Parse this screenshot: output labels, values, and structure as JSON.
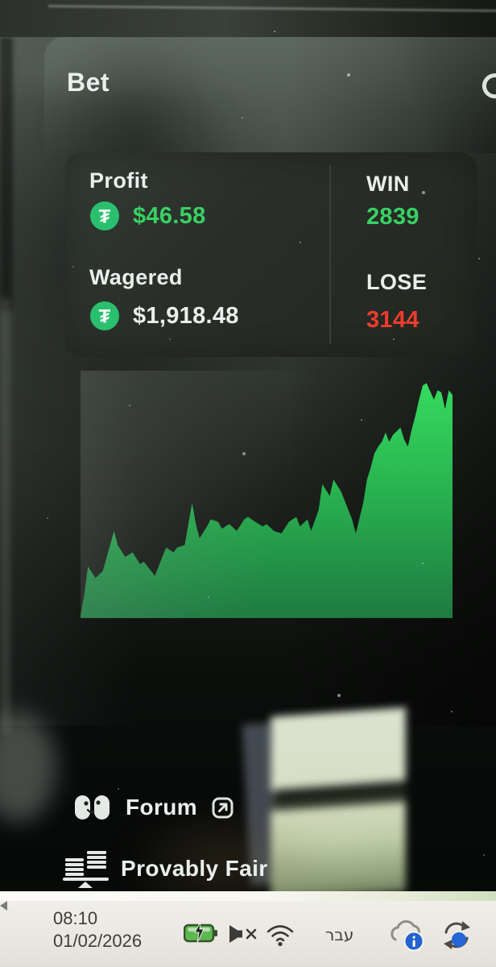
{
  "header": {
    "title": "Bet"
  },
  "stats": {
    "profit_label": "Profit",
    "profit_value": "$46.58",
    "wagered_label": "Wagered",
    "wagered_value": "$1,918.48",
    "win_label": "WIN",
    "win_value": "2839",
    "lose_label": "LOSE",
    "lose_value": "3144"
  },
  "links": {
    "forum_label": "Forum",
    "provably_fair_label": "Provably Fair"
  },
  "taskbar": {
    "time": "08:10",
    "date": "01/02/2026",
    "language_indicator": "עבר"
  },
  "icons": {
    "refresh": "refresh-icon",
    "tether_glyph": "₮",
    "external_link": "arrow-up-right-in-box",
    "forum": "two-chat-faces",
    "provably_fair": "balance-scale",
    "battery": "battery-charging-green",
    "volume": "speaker-muted",
    "wifi": "wifi-signal",
    "cloud": "cloud-info-badge",
    "sync": "sync-arrows-blue-dot"
  },
  "colors": {
    "profit-green": "#38d163",
    "lose-red": "#ef3b2e",
    "tether-green": "#2abf6e",
    "text-light": "#e9efec",
    "chart-green-top": "#36da5f",
    "chart-green-mid": "#29b350",
    "chart-green-bottom": "#1f7a41",
    "taskbar-bg": "#eceae4",
    "taskbar-text": "#3e3d3a"
  },
  "chart_data": {
    "type": "area",
    "title": "",
    "xlabel": "",
    "ylabel": "",
    "legend": false,
    "grid": false,
    "axes_labels_visible": false,
    "description": "Cumulative profit history sparkline; axes unlabeled in UI; points normalized x 0-100 (time), y 0-100 (relative profit height)",
    "fill_gradient": [
      "#36da5f",
      "#1f7a41"
    ],
    "points": [
      [
        0,
        1
      ],
      [
        1,
        10
      ],
      [
        2,
        22
      ],
      [
        4,
        17
      ],
      [
        6,
        20
      ],
      [
        9,
        37
      ],
      [
        10,
        31
      ],
      [
        12,
        26
      ],
      [
        14,
        28
      ],
      [
        16,
        23
      ],
      [
        17,
        24
      ],
      [
        20,
        18
      ],
      [
        22,
        26
      ],
      [
        23,
        30
      ],
      [
        25,
        28
      ],
      [
        26,
        30
      ],
      [
        28,
        31
      ],
      [
        30,
        49
      ],
      [
        31,
        40
      ],
      [
        32,
        34
      ],
      [
        34,
        39
      ],
      [
        35,
        42
      ],
      [
        37,
        41
      ],
      [
        38,
        38
      ],
      [
        40,
        40
      ],
      [
        42,
        37
      ],
      [
        44,
        42
      ],
      [
        45,
        43
      ],
      [
        47,
        41
      ],
      [
        49,
        39
      ],
      [
        50,
        40
      ],
      [
        52,
        37
      ],
      [
        54,
        36
      ],
      [
        56,
        41
      ],
      [
        58,
        43
      ],
      [
        59,
        39
      ],
      [
        61,
        42
      ],
      [
        62,
        37
      ],
      [
        64,
        46
      ],
      [
        65,
        57
      ],
      [
        67,
        52
      ],
      [
        68,
        59
      ],
      [
        70,
        54
      ],
      [
        71,
        50
      ],
      [
        73,
        42
      ],
      [
        74,
        36
      ],
      [
        76,
        49
      ],
      [
        77,
        59
      ],
      [
        78,
        64
      ],
      [
        79,
        70
      ],
      [
        80,
        73
      ],
      [
        81,
        75
      ],
      [
        82,
        79
      ],
      [
        83,
        75
      ],
      [
        84,
        78
      ],
      [
        86,
        81
      ],
      [
        87,
        76
      ],
      [
        88,
        73
      ],
      [
        89,
        80
      ],
      [
        90,
        86
      ],
      [
        91,
        93
      ],
      [
        92,
        99
      ],
      [
        93,
        100
      ],
      [
        95,
        93
      ],
      [
        96,
        97
      ],
      [
        97,
        96
      ],
      [
        98,
        89
      ],
      [
        99,
        97
      ],
      [
        100,
        95
      ]
    ]
  }
}
